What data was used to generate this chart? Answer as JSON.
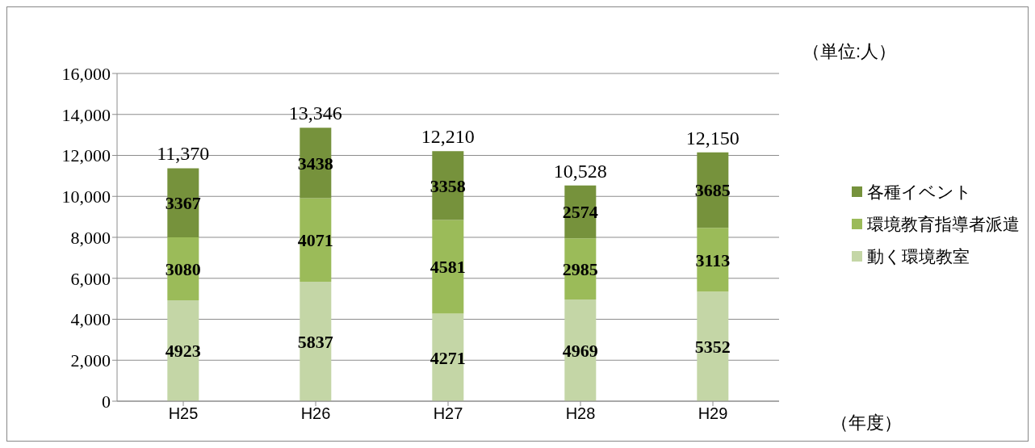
{
  "chart_data": {
    "type": "bar",
    "stacked": true,
    "categories": [
      "H25",
      "H26",
      "H27",
      "H28",
      "H29"
    ],
    "series": [
      {
        "name": "動く環境教室",
        "color": "#c4d6a6",
        "values": [
          4923,
          5837,
          4271,
          4969,
          5352
        ]
      },
      {
        "name": "環境教育指導者派遣",
        "color": "#9bbb59",
        "values": [
          3080,
          4071,
          4581,
          2985,
          3113
        ]
      },
      {
        "name": "各種イベント",
        "color": "#76923c",
        "values": [
          3367,
          3438,
          3358,
          2574,
          3685
        ]
      }
    ],
    "totals": [
      "11,370",
      "13,346",
      "12,210",
      "10,528",
      "12,150"
    ],
    "ylim": [
      0,
      16000
    ],
    "yticks": [
      {
        "value": 0,
        "label": "0"
      },
      {
        "value": 2000,
        "label": "2,000"
      },
      {
        "value": 4000,
        "label": "4,000"
      },
      {
        "value": 6000,
        "label": "6,000"
      },
      {
        "value": 8000,
        "label": "8,000"
      },
      {
        "value": 10000,
        "label": "10,000"
      },
      {
        "value": 12000,
        "label": "12,000"
      },
      {
        "value": 14000,
        "label": "14,000"
      },
      {
        "value": 16000,
        "label": "16,000"
      }
    ],
    "annotations": [
      "（単位:人）",
      "（年度）"
    ],
    "grid": "y",
    "legend": "right",
    "data_labels": true
  }
}
